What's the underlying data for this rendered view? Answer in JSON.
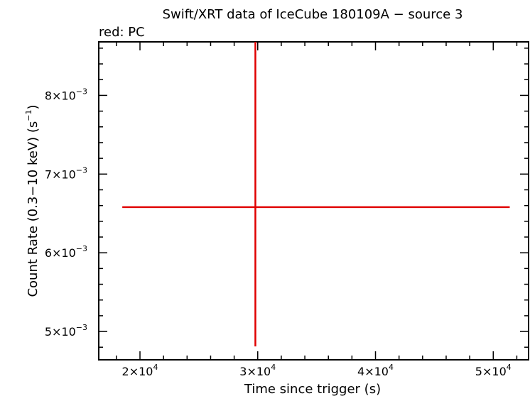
{
  "chart_data": {
    "type": "scatter",
    "title": "Swift/XRT data of IceCube 180109A − source 3",
    "subtitle": "red: PC",
    "xlabel": "Time since trigger (s)",
    "ylabel_parts": [
      "Count Rate (0.3−10 keV) (s",
      "−1",
      ")"
    ],
    "xlim": [
      16500,
      53000
    ],
    "ylim": [
      0.00464,
      0.00868
    ],
    "grid": false,
    "x_ticks": [
      {
        "value": 20000,
        "mant": "2×10",
        "exp": "4"
      },
      {
        "value": 30000,
        "mant": "3×10",
        "exp": "4"
      },
      {
        "value": 40000,
        "mant": "4×10",
        "exp": "4"
      },
      {
        "value": 50000,
        "mant": "5×10",
        "exp": "4"
      }
    ],
    "y_ticks": [
      {
        "value": 0.005,
        "mant": "5×10",
        "exp": "−3"
      },
      {
        "value": 0.006,
        "mant": "6×10",
        "exp": "−3"
      },
      {
        "value": 0.007,
        "mant": "7×10",
        "exp": "−3"
      },
      {
        "value": 0.008,
        "mant": "8×10",
        "exp": "−3"
      }
    ],
    "series": [
      {
        "color": "#e00000",
        "points": [
          {
            "x": 29800,
            "xerr_low": 11300,
            "xerr_high": 21600,
            "y": 0.00658,
            "yerr_low": 0.00177,
            "yerr_high": 0.0021
          }
        ]
      }
    ]
  }
}
